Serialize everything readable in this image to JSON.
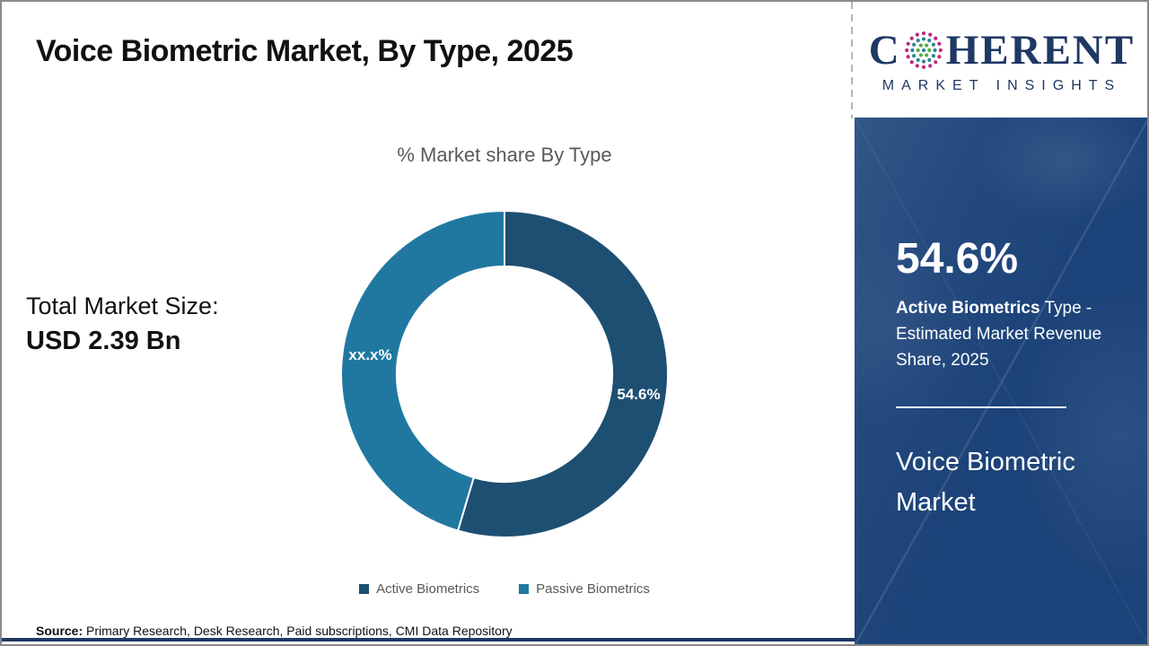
{
  "header": {
    "title": "Voice Biometric Market, By Type, 2025"
  },
  "logo": {
    "word_start": "C",
    "word_end": "HERENT",
    "subtitle": "MARKET INSIGHTS"
  },
  "chart_data": {
    "type": "pie",
    "subtype": "donut",
    "title": "% Market share By Type",
    "categories": [
      "Active Biometrics",
      "Passive Biometrics"
    ],
    "values": [
      54.6,
      45.4
    ],
    "slice_labels": [
      "54.6%",
      "xx.x%"
    ],
    "colors": [
      "#1d4f72",
      "#2078a1"
    ],
    "donut_hole_ratio": 0.66,
    "start_angle_deg": 0,
    "legend_position": "bottom"
  },
  "market_size": {
    "label": "Total Market Size:",
    "value": "USD 2.39 Bn"
  },
  "source": {
    "label": "Source:",
    "text": " Primary Research, Desk Research, Paid subscriptions, CMI Data Repository"
  },
  "sidebar": {
    "stat_value": "54.6%",
    "stat_desc_bold": "Active Biometrics",
    "stat_desc_rest": " Type - Estimated Market Revenue Share, 2025",
    "panel_title": "Voice Biometric Market"
  },
  "colors": {
    "active_slice": "#1d4f72",
    "passive_slice": "#2078a1",
    "panel_blue": "#1c4379",
    "brand_navy": "#1f3864",
    "gray_text": "#595959",
    "frame_border": "#8a8a8a",
    "dash_gray": "#b5b5b5",
    "globe_magenta": "#c0277e",
    "globe_teal": "#2b8593",
    "globe_green": "#56a944"
  }
}
